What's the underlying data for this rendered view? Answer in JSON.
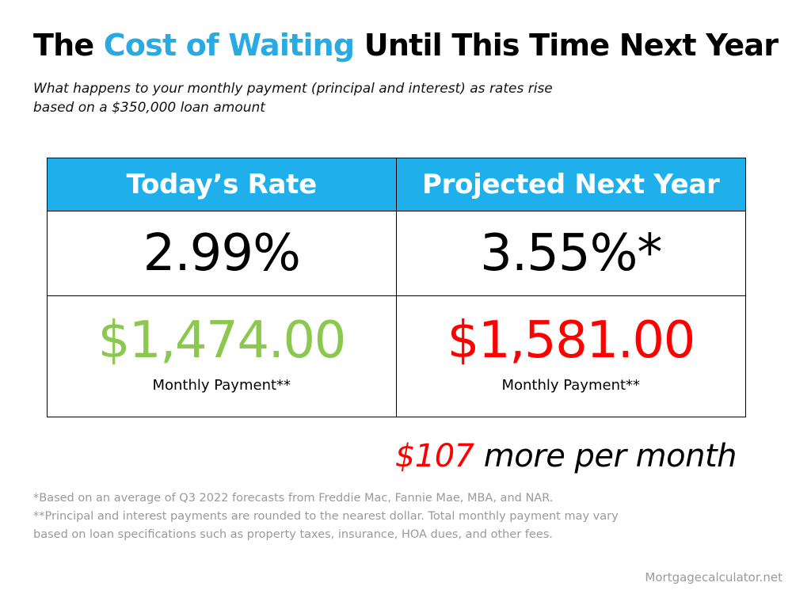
{
  "title": {
    "prefix": "The ",
    "highlight": "Cost of Waiting",
    "suffix": " Until This Time Next Year"
  },
  "subtitle": {
    "line1": "What happens to your monthly payment (principal and interest) as rates rise",
    "line2": "based on a $350,000 loan amount"
  },
  "table": {
    "today": {
      "header": "Today’s Rate",
      "rate": "2.99%",
      "payment": "$1,474.00",
      "payment_label": "Monthly Payment**"
    },
    "projected": {
      "header": "Projected Next Year",
      "rate": "3.55%*",
      "payment": "$1,581.00",
      "payment_label": "Monthly Payment**"
    }
  },
  "difference": {
    "amount": "$107",
    "text": " more per month"
  },
  "footnotes": {
    "note1": "*Based on an average of Q3 2022 forecasts from Freddie Mac, Fannie Mae, MBA, and NAR.",
    "note2_line1": "**Principal and interest payments are rounded to the nearest dollar. Total monthly payment may vary",
    "note2_line2": "based on loan specifications such as property taxes, insurance, HOA dues, and other fees."
  },
  "source": "Mortgagecalculator.net",
  "colors": {
    "title_accent": "#29abe2",
    "header_bg": "#1fb0ec",
    "today_payment": "#8bc84f",
    "projected_payment": "#ff0000",
    "difference_amount": "#ff0000",
    "footnote_text": "#9a9a9a"
  }
}
